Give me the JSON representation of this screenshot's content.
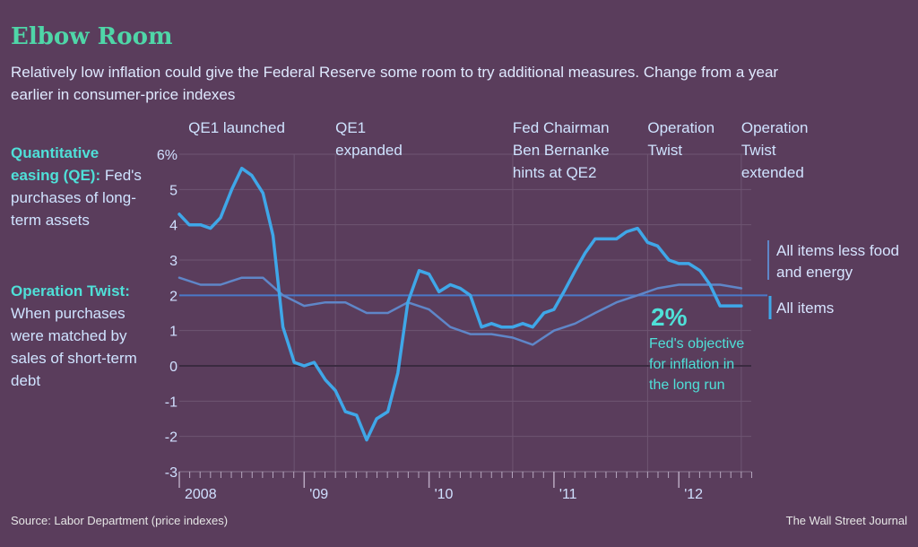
{
  "chart_data": {
    "type": "line",
    "title": "Elbow Room",
    "subtitle": "Relatively low inflation could give the Federal Reserve some room to try additional measures. Change from a year earlier in consumer-price indexes",
    "ylim": [
      -3,
      6
    ],
    "y_ticks": [
      "6%",
      "5",
      "4",
      "3",
      "2",
      "1",
      "0",
      "-1",
      "-2",
      "-3"
    ],
    "x_labels": [
      "2008",
      "'09",
      "'10",
      "'11",
      "'12"
    ],
    "x_start": 2008.0,
    "x_end": 2012.58,
    "reference_value": 2,
    "series": [
      {
        "name": "All items",
        "color": "#3fa7e8",
        "x": [
          2008.0,
          2008.08,
          2008.17,
          2008.25,
          2008.33,
          2008.42,
          2008.5,
          2008.58,
          2008.67,
          2008.75,
          2008.83,
          2008.92,
          2009.0,
          2009.08,
          2009.17,
          2009.25,
          2009.33,
          2009.42,
          2009.5,
          2009.58,
          2009.67,
          2009.75,
          2009.83,
          2009.92,
          2010.0,
          2010.08,
          2010.17,
          2010.25,
          2010.33,
          2010.42,
          2010.5,
          2010.58,
          2010.67,
          2010.75,
          2010.83,
          2010.92,
          2011.0,
          2011.08,
          2011.17,
          2011.25,
          2011.33,
          2011.42,
          2011.5,
          2011.58,
          2011.67,
          2011.75,
          2011.83,
          2011.92,
          2012.0,
          2012.08,
          2012.17,
          2012.25,
          2012.33,
          2012.42,
          2012.5
        ],
        "values": [
          4.3,
          4.0,
          4.0,
          3.9,
          4.2,
          5.0,
          5.6,
          5.4,
          4.9,
          3.7,
          1.1,
          0.1,
          0.0,
          0.1,
          -0.4,
          -0.7,
          -1.3,
          -1.4,
          -2.1,
          -1.5,
          -1.3,
          -0.2,
          1.8,
          2.7,
          2.6,
          2.1,
          2.3,
          2.2,
          2.0,
          1.1,
          1.2,
          1.1,
          1.1,
          1.2,
          1.1,
          1.5,
          1.6,
          2.1,
          2.7,
          3.2,
          3.6,
          3.6,
          3.6,
          3.8,
          3.9,
          3.5,
          3.4,
          3.0,
          2.9,
          2.9,
          2.7,
          2.3,
          1.7,
          1.7,
          1.7
        ]
      },
      {
        "name": "All items less food and energy",
        "color": "#5f86c8",
        "x": [
          2008.0,
          2008.17,
          2008.33,
          2008.5,
          2008.67,
          2008.83,
          2009.0,
          2009.17,
          2009.33,
          2009.5,
          2009.67,
          2009.83,
          2010.0,
          2010.17,
          2010.33,
          2010.5,
          2010.67,
          2010.83,
          2011.0,
          2011.17,
          2011.33,
          2011.5,
          2011.67,
          2011.83,
          2012.0,
          2012.17,
          2012.33,
          2012.5
        ],
        "values": [
          2.5,
          2.3,
          2.3,
          2.5,
          2.5,
          2.0,
          1.7,
          1.8,
          1.8,
          1.5,
          1.5,
          1.8,
          1.6,
          1.1,
          0.9,
          0.9,
          0.8,
          0.6,
          1.0,
          1.2,
          1.5,
          1.8,
          2.0,
          2.2,
          2.3,
          2.3,
          2.3,
          2.2
        ]
      }
    ],
    "events": [
      {
        "label": "QE1 launched",
        "x": 2008.92
      },
      {
        "label": "QE1\nexpanded",
        "x": 2009.25
      },
      {
        "label": "Fed Chairman\nBen Bernanke\nhints at QE2",
        "x": 2010.67
      },
      {
        "label": "Operation\nTwist",
        "x": 2011.75
      },
      {
        "label": "Operation\nTwist\nextended",
        "x": 2012.5
      }
    ],
    "target": {
      "value": "2%",
      "text": "Fed's objective\nfor inflation in\nthe long run"
    },
    "colors": {
      "background": "#5a3d5c",
      "grid": "#6e5572",
      "accent": "#4fe0d8"
    }
  },
  "side_notes": {
    "qe_title": "Quantitative easing (QE):",
    "qe_text": "Fed's purchases of long-term assets",
    "twist_title": "Operation Twist:",
    "twist_text": "When purchases were matched by sales of short-term debt"
  },
  "footer": {
    "source": "Source: Labor Department (price indexes)",
    "publisher": "The Wall Street Journal"
  }
}
